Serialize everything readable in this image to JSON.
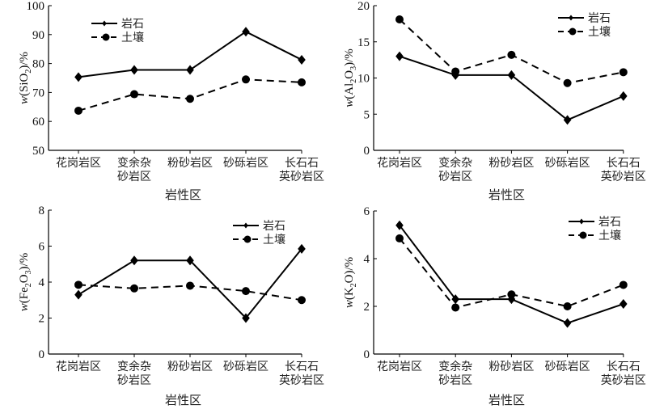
{
  "chart_data": [
    {
      "type": "line",
      "title": "",
      "xlabel": "岩性区",
      "ylabel": {
        "prefix": "w(SiO",
        "sub": "2",
        "suffix": ")/%"
      },
      "ylim": [
        50,
        100
      ],
      "yticks": [
        50,
        60,
        70,
        80,
        90,
        100
      ],
      "categories": [
        [
          "花岗岩区"
        ],
        [
          "变余杂",
          "砂岩区"
        ],
        [
          "粉砂岩区"
        ],
        [
          "砂砾岩区"
        ],
        [
          "长石石",
          "英砂岩区"
        ]
      ],
      "legend_position": "top-left",
      "series": [
        {
          "name": "岩石",
          "style": "solid",
          "marker": "diamond",
          "values": [
            75.3,
            77.8,
            77.8,
            91.0,
            81.3
          ]
        },
        {
          "name": "土壤",
          "style": "dashed",
          "marker": "circle",
          "values": [
            63.7,
            69.4,
            67.8,
            74.5,
            73.5
          ]
        }
      ]
    },
    {
      "type": "line",
      "title": "",
      "xlabel": "岩性区",
      "ylabel": {
        "prefix": "w(Al",
        "sub": "2",
        "mid": "O",
        "sub2": "3",
        "suffix": ")/%"
      },
      "ylim": [
        0,
        20
      ],
      "yticks": [
        0,
        5,
        10,
        15,
        20
      ],
      "categories": [
        [
          "花岗岩区"
        ],
        [
          "变余杂",
          "砂岩区"
        ],
        [
          "粉砂岩区"
        ],
        [
          "砂砾岩区"
        ],
        [
          "长石石",
          "英砂岩区"
        ]
      ],
      "legend_position": "top-right",
      "series": [
        {
          "name": "岩石",
          "style": "solid",
          "marker": "diamond",
          "values": [
            13.0,
            10.4,
            10.4,
            4.2,
            7.5
          ]
        },
        {
          "name": "土壤",
          "style": "dashed",
          "marker": "circle",
          "values": [
            18.1,
            10.9,
            13.2,
            9.3,
            10.8
          ]
        }
      ]
    },
    {
      "type": "line",
      "title": "",
      "xlabel": "岩性区",
      "ylabel": {
        "prefix": "w(Fe",
        "sub": "2",
        "mid": "O",
        "sub2": "3",
        "suffix": ")/%"
      },
      "ylim": [
        0,
        8
      ],
      "yticks": [
        0,
        2,
        4,
        6,
        8
      ],
      "categories": [
        [
          "花岗岩区"
        ],
        [
          "变余杂",
          "砂岩区"
        ],
        [
          "粉砂岩区"
        ],
        [
          "砂砾岩区"
        ],
        [
          "长石石",
          "英砂岩区"
        ]
      ],
      "legend_position": "top-right",
      "series": [
        {
          "name": "岩石",
          "style": "solid",
          "marker": "diamond",
          "values": [
            3.3,
            5.2,
            5.2,
            2.0,
            5.85
          ]
        },
        {
          "name": "土壤",
          "style": "dashed",
          "marker": "circle",
          "values": [
            3.85,
            3.65,
            3.8,
            3.5,
            3.0
          ]
        }
      ]
    },
    {
      "type": "line",
      "title": "",
      "xlabel": "岩性区",
      "ylabel": {
        "prefix": "w(K",
        "sub": "2",
        "suffix": "O)/%"
      },
      "ylim": [
        0,
        6
      ],
      "yticks": [
        0,
        2,
        4,
        6
      ],
      "categories": [
        [
          "花岗岩区"
        ],
        [
          "变余杂",
          "砂岩区"
        ],
        [
          "粉砂岩区"
        ],
        [
          "砂砾岩区"
        ],
        [
          "长石石",
          "英砂岩区"
        ]
      ],
      "legend_position": "top-right",
      "series": [
        {
          "name": "岩石",
          "style": "solid",
          "marker": "diamond",
          "values": [
            5.4,
            2.3,
            2.3,
            1.3,
            2.1
          ]
        },
        {
          "name": "土壤",
          "style": "dashed",
          "marker": "circle",
          "values": [
            4.85,
            1.95,
            2.5,
            2.0,
            2.9
          ]
        }
      ]
    }
  ]
}
